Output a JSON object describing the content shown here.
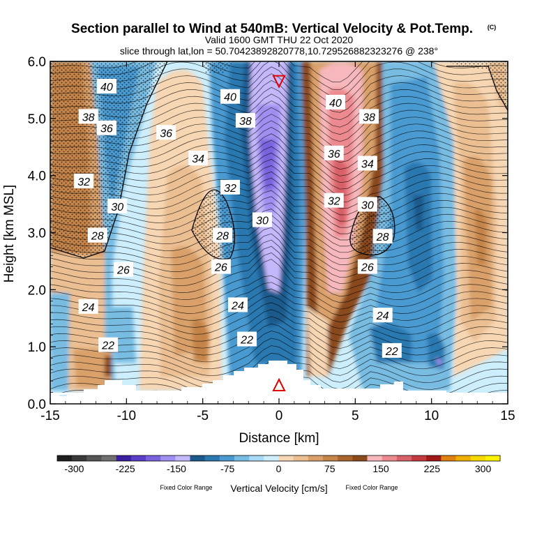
{
  "chart_data": {
    "type": "heatmap",
    "title": "Section parallel to Wind at 540mB: Vertical Velocity & Pot.Temp.",
    "copyright_mark": "(C)",
    "subtitle_1": "Valid 1600 GMT THU 22 Oct 2020",
    "subtitle_2": "slice through lat,lon = 50.70423892820778,10.729526882323276 @ 238°",
    "xlabel": "Distance [km]",
    "ylabel": "Height [km MSL]",
    "xlim": [
      -15,
      15
    ],
    "ylim": [
      0,
      6
    ],
    "x_ticks": [
      "-15",
      "-10",
      "-5",
      "0",
      "5",
      "10",
      "15"
    ],
    "y_ticks": [
      "0.0",
      "1.0",
      "2.0",
      "3.0",
      "4.0",
      "5.0",
      "6.0"
    ],
    "colorbar": {
      "label": "Vertical Velocity [cm/s]",
      "note_left": "Fixed Color Range",
      "note_right": "Fixed Color Range",
      "tick_labels": [
        "-300",
        "-225",
        "-150",
        "-75",
        "0",
        "75",
        "150",
        "225",
        "300"
      ],
      "colors": [
        "#1e1e1e",
        "#3a3a3a",
        "#555555",
        "#707070",
        "#3c1fa0",
        "#5a3dc8",
        "#7a62dc",
        "#a08ff0",
        "#c4b8fa",
        "#1a5a8c",
        "#2c78b0",
        "#4a9ad0",
        "#78bce2",
        "#a8daf5",
        "#cdeefc",
        "#f7d6b3",
        "#ebbf92",
        "#d9a06a",
        "#c4844a",
        "#a8642c",
        "#8a4a1a",
        "#f6b8bc",
        "#ec8a90",
        "#d86068",
        "#c43840",
        "#a01818",
        "#e08010",
        "#eeb000",
        "#f5d800",
        "#fff200"
      ]
    },
    "theta_contour_labels": [
      {
        "value": "40",
        "x": -11.3,
        "y": 5.56
      },
      {
        "value": "38",
        "x": -12.5,
        "y": 5.03
      },
      {
        "value": "36",
        "x": -11.3,
        "y": 4.83
      },
      {
        "value": "32",
        "x": -12.8,
        "y": 3.9
      },
      {
        "value": "30",
        "x": -10.6,
        "y": 3.46
      },
      {
        "value": "28",
        "x": -11.9,
        "y": 2.95
      },
      {
        "value": "26",
        "x": -10.2,
        "y": 2.35
      },
      {
        "value": "24",
        "x": -12.5,
        "y": 1.7
      },
      {
        "value": "22",
        "x": -11.2,
        "y": 1.03
      },
      {
        "value": "40",
        "x": -3.2,
        "y": 5.38
      },
      {
        "value": "36",
        "x": -7.4,
        "y": 4.75
      },
      {
        "value": "38",
        "x": -2.2,
        "y": 4.96
      },
      {
        "value": "34",
        "x": -5.3,
        "y": 4.3
      },
      {
        "value": "32",
        "x": -3.2,
        "y": 3.79
      },
      {
        "value": "30",
        "x": -1.1,
        "y": 3.22
      },
      {
        "value": "28",
        "x": -3.7,
        "y": 2.95
      },
      {
        "value": "26",
        "x": -3.8,
        "y": 2.4
      },
      {
        "value": "24",
        "x": -2.7,
        "y": 1.73
      },
      {
        "value": "22",
        "x": -2.1,
        "y": 1.13
      },
      {
        "value": "40",
        "x": 3.7,
        "y": 5.28
      },
      {
        "value": "38",
        "x": 5.9,
        "y": 5.03
      },
      {
        "value": "36",
        "x": 3.6,
        "y": 4.39
      },
      {
        "value": "34",
        "x": 5.8,
        "y": 4.21
      },
      {
        "value": "32",
        "x": 3.6,
        "y": 3.56
      },
      {
        "value": "30",
        "x": 5.8,
        "y": 3.49
      },
      {
        "value": "28",
        "x": 6.8,
        "y": 2.93
      },
      {
        "value": "26",
        "x": 5.8,
        "y": 2.4
      },
      {
        "value": "24",
        "x": 6.8,
        "y": 1.55
      },
      {
        "value": "22",
        "x": 7.4,
        "y": 0.93
      }
    ],
    "triangles": [
      {
        "dir": "down",
        "x": 0,
        "y": 5.65
      },
      {
        "dir": "up",
        "x": 0,
        "y": 0.33
      }
    ],
    "colors": {
      "line": "#000000",
      "marker": "#e00000",
      "terrain": "#ffffff"
    }
  }
}
